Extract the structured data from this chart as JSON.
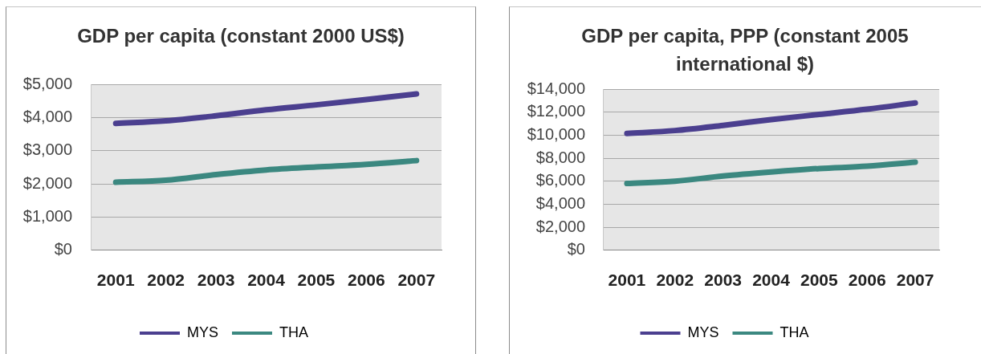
{
  "chart_data": [
    {
      "type": "line",
      "title": "GDP per capita (constant 2000 US$)",
      "categories": [
        "2001",
        "2002",
        "2003",
        "2004",
        "2005",
        "2006",
        "2007"
      ],
      "series": [
        {
          "name": "MYS",
          "color": "#4b3f8f",
          "values": [
            3820,
            3900,
            4050,
            4230,
            4380,
            4540,
            4710
          ]
        },
        {
          "name": "THA",
          "color": "#3b8880",
          "values": [
            2050,
            2110,
            2280,
            2420,
            2510,
            2590,
            2700
          ]
        }
      ],
      "ylim": [
        0,
        5000
      ],
      "yticks": [
        {
          "value": 0,
          "label": "$0"
        },
        {
          "value": 1000,
          "label": "$1,000"
        },
        {
          "value": 2000,
          "label": "$2,000"
        },
        {
          "value": 3000,
          "label": "$3,000"
        },
        {
          "value": 4000,
          "label": "$4,000"
        },
        {
          "value": 5000,
          "label": "$5,000"
        }
      ],
      "grid": "y",
      "legend": "bottom"
    },
    {
      "type": "line",
      "title": "GDP per capita, PPP (constant 2005 international $)",
      "categories": [
        "2001",
        "2002",
        "2003",
        "2004",
        "2005",
        "2006",
        "2007"
      ],
      "series": [
        {
          "name": "MYS",
          "color": "#4b3f8f",
          "values": [
            10150,
            10400,
            10850,
            11350,
            11800,
            12250,
            12800
          ]
        },
        {
          "name": "THA",
          "color": "#3b8880",
          "values": [
            5800,
            6000,
            6450,
            6800,
            7100,
            7300,
            7650
          ]
        }
      ],
      "ylim": [
        0,
        14000
      ],
      "yticks": [
        {
          "value": 0,
          "label": "$0"
        },
        {
          "value": 2000,
          "label": "$2,000"
        },
        {
          "value": 4000,
          "label": "$4,000"
        },
        {
          "value": 6000,
          "label": "$6,000"
        },
        {
          "value": 8000,
          "label": "$8,000"
        },
        {
          "value": 10000,
          "label": "$10,000"
        },
        {
          "value": 12000,
          "label": "$12,000"
        },
        {
          "value": 14000,
          "label": "$14,000"
        }
      ],
      "grid": "y",
      "legend": "bottom"
    }
  ]
}
